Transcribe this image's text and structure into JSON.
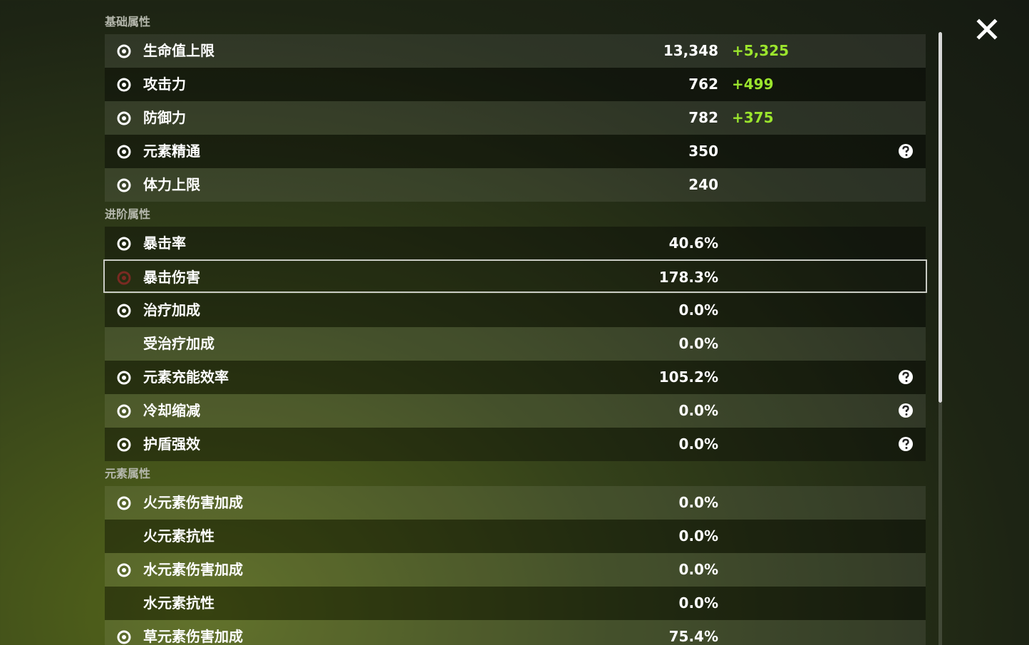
{
  "sections": [
    {
      "title": "基础属性",
      "rows": [
        {
          "name": "生命值上限",
          "value": "13,348",
          "bonus": "+5,325"
        },
        {
          "name": "攻击力",
          "value": "762",
          "bonus": "+499"
        },
        {
          "name": "防御力",
          "value": "782",
          "bonus": "+375"
        },
        {
          "name": "元素精通",
          "value": "350"
        },
        {
          "name": "体力上限",
          "value": "240"
        }
      ]
    },
    {
      "title": "进阶属性",
      "rows": [
        {
          "name": "暴击率",
          "value": "40.6%"
        },
        {
          "name": "暴击伤害",
          "value": "178.3%"
        },
        {
          "name": "治疗加成",
          "value": "0.0%"
        },
        {
          "name": "受治疗加成",
          "value": "0.0%"
        },
        {
          "name": "元素充能效率",
          "value": "105.2%"
        },
        {
          "name": "冷却缩减",
          "value": "0.0%"
        },
        {
          "name": "护盾强效",
          "value": "0.0%"
        }
      ]
    },
    {
      "title": "元素属性",
      "rows": [
        {
          "name": "火元素伤害加成",
          "value": "0.0%"
        },
        {
          "name": "火元素抗性",
          "value": "0.0%"
        },
        {
          "name": "水元素伤害加成",
          "value": "0.0%"
        },
        {
          "name": "水元素抗性",
          "value": "0.0%"
        },
        {
          "name": "草元素伤害加成",
          "value": "75.4%"
        }
      ]
    }
  ]
}
